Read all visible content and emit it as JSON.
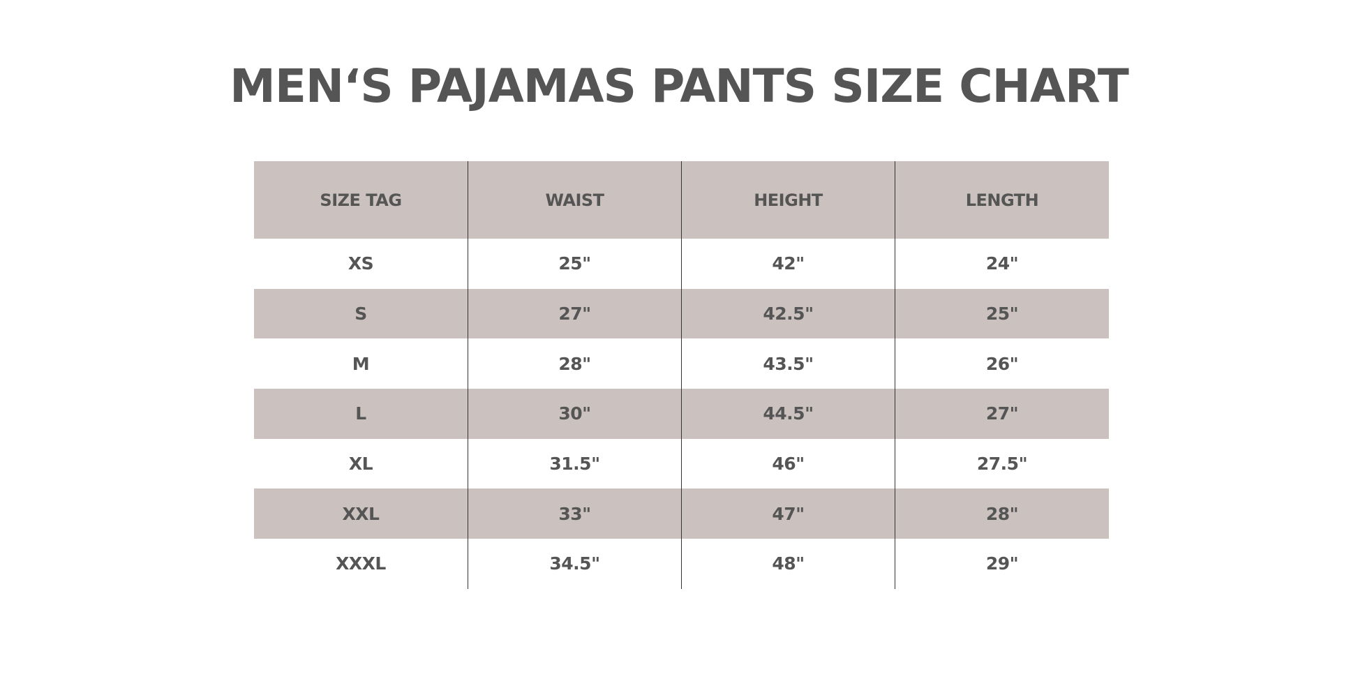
{
  "title": "MEN‘S PAJAMAS PANTS SIZE CHART",
  "colors": {
    "text": "#555555",
    "shade": "#cbc2bf",
    "divider": "#333333"
  },
  "table": {
    "headers": [
      "SIZE TAG",
      "WAIST",
      "HEIGHT",
      "LENGTH"
    ],
    "rows": [
      [
        "XS",
        "25\"",
        "42\"",
        "24\""
      ],
      [
        "S",
        "27\"",
        "42.5\"",
        "25\""
      ],
      [
        "M",
        "28\"",
        "43.5\"",
        "26\""
      ],
      [
        "L",
        "30\"",
        "44.5\"",
        "27\""
      ],
      [
        "XL",
        "31.5\"",
        "46\"",
        "27.5\""
      ],
      [
        "XXL",
        "33\"",
        "47\"",
        "28\""
      ],
      [
        "XXXL",
        "34.5\"",
        "48\"",
        "29\""
      ]
    ]
  }
}
